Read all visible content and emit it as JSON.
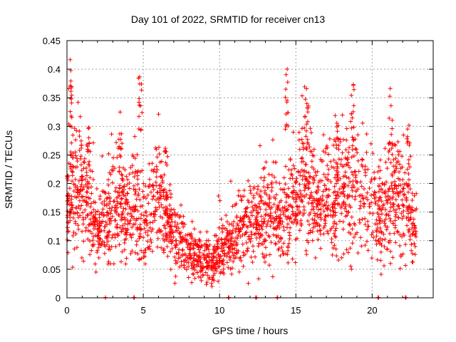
{
  "chart_data": {
    "type": "scatter",
    "title": "Day 101 of 2022, SRMTID for receiver cn13",
    "xlabel": "GPS time / hours",
    "ylabel": "SRMTID / TECUs",
    "xlim": [
      0,
      24
    ],
    "ylim": [
      0,
      0.45
    ],
    "x_ticks": [
      0,
      5,
      10,
      15,
      20
    ],
    "y_ticks": [
      0,
      0.05,
      0.1,
      0.15,
      0.2,
      0.25,
      0.3,
      0.35,
      0.4,
      0.45
    ],
    "x_tick_labels": [
      "0",
      "5",
      "10",
      "15",
      "20"
    ],
    "y_tick_labels": [
      "0",
      "0.05",
      "0.1",
      "0.15",
      "0.2",
      "0.25",
      "0.3",
      "0.35",
      "0.4",
      "0.45"
    ],
    "grid": true,
    "marker": "+",
    "color": "#ff0000",
    "mean_profile": [
      [
        0,
        0.15
      ],
      [
        0.5,
        0.19
      ],
      [
        1,
        0.18
      ],
      [
        1.5,
        0.17
      ],
      [
        2,
        0.11
      ],
      [
        2.5,
        0.13
      ],
      [
        3,
        0.17
      ],
      [
        3.5,
        0.16
      ],
      [
        4,
        0.15
      ],
      [
        4.5,
        0.17
      ],
      [
        5,
        0.13
      ],
      [
        5.5,
        0.14
      ],
      [
        6,
        0.18
      ],
      [
        6.5,
        0.15
      ],
      [
        7,
        0.11
      ],
      [
        7.5,
        0.09
      ],
      [
        8,
        0.08
      ],
      [
        8.5,
        0.07
      ],
      [
        9,
        0.07
      ],
      [
        9.5,
        0.065
      ],
      [
        10,
        0.08
      ],
      [
        10.5,
        0.09
      ],
      [
        11,
        0.1
      ],
      [
        11.5,
        0.11
      ],
      [
        12,
        0.13
      ],
      [
        12.5,
        0.12
      ],
      [
        13,
        0.14
      ],
      [
        13.5,
        0.15
      ],
      [
        14,
        0.13
      ],
      [
        14.5,
        0.16
      ],
      [
        15,
        0.17
      ],
      [
        15.5,
        0.2
      ],
      [
        16,
        0.18
      ],
      [
        16.5,
        0.16
      ],
      [
        17,
        0.19
      ],
      [
        17.5,
        0.17
      ],
      [
        18,
        0.2
      ],
      [
        18.5,
        0.18
      ],
      [
        19,
        0.2
      ],
      [
        19.5,
        0.17
      ],
      [
        20,
        0.16
      ],
      [
        20.5,
        0.14
      ],
      [
        21,
        0.15
      ],
      [
        21.5,
        0.18
      ],
      [
        22,
        0.17
      ],
      [
        22.5,
        0.13
      ],
      [
        22.8,
        0.11
      ]
    ],
    "peaks": [
      [
        0.2,
        0.42
      ],
      [
        0.3,
        0.33
      ],
      [
        1.4,
        0.3
      ],
      [
        3.5,
        0.31
      ],
      [
        4.8,
        0.41
      ],
      [
        6.5,
        0.26
      ],
      [
        14.4,
        0.405
      ],
      [
        15.7,
        0.37
      ],
      [
        17.7,
        0.32
      ],
      [
        18.7,
        0.395
      ],
      [
        21.2,
        0.37
      ],
      [
        22.4,
        0.31
      ]
    ],
    "zero_points": [
      2.5,
      4.4,
      10.6,
      12.4,
      13.8,
      20.4,
      22.2
    ],
    "x_range_hours": [
      0,
      22.9
    ],
    "n_points": 2300
  }
}
